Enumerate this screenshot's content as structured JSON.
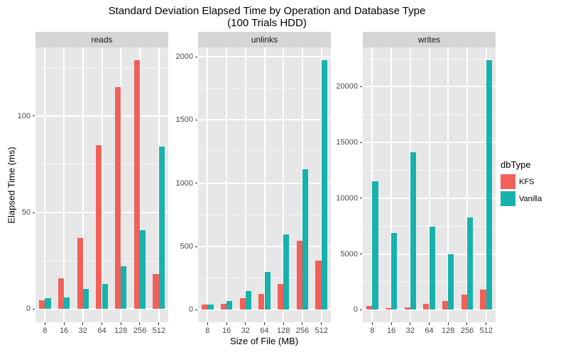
{
  "chart_data": {
    "type": "bar",
    "title": "Standard Deviation Elapsed Time by Operation and Database Type",
    "subtitle": "(100 Trials HDD)",
    "xlabel": "Size of File (MB)",
    "ylabel": "Elapsed Time (ms)",
    "categories": [
      "8",
      "16",
      "32",
      "64",
      "128",
      "256",
      "512"
    ],
    "legend": {
      "title": "dbType",
      "position": "right"
    },
    "series_names": [
      "KFS",
      "Vanilla"
    ],
    "series_colors": [
      "#F1605A",
      "#17B2AC"
    ],
    "panel_bg": "#E7E7E7",
    "strip_bg": "#D5D5D5",
    "grid_color": "#FFFFFF",
    "grid": "white major+minor horizontal, major vertical at category centers",
    "panels": [
      {
        "label": "reads",
        "ylim": [
          -6.8,
          135.5
        ],
        "yticks": [
          0,
          50,
          100
        ],
        "yminor": [
          25,
          75,
          125
        ],
        "series": [
          {
            "name": "KFS",
            "values": [
              4.5,
              16,
              37,
              85,
              115,
              129,
              18
            ]
          },
          {
            "name": "Vanilla",
            "values": [
              5.5,
              6,
              10.5,
              13,
              22,
              41,
              84
            ]
          }
        ]
      },
      {
        "label": "unlinks",
        "ylim": [
          -99,
          2074
        ],
        "yticks": [
          0,
          500,
          1000,
          1500,
          2000
        ],
        "yminor": [
          250,
          750,
          1250,
          1750
        ],
        "series": [
          {
            "name": "KFS",
            "values": [
              40,
              48,
              92,
              127,
              205,
              545,
              390
            ]
          },
          {
            "name": "Vanilla",
            "values": [
              40,
              70,
              150,
              300,
              595,
              1110,
              1975
            ]
          }
        ]
      },
      {
        "label": "writes",
        "ylim": [
          -1120,
          23520
        ],
        "yticks": [
          0,
          5000,
          10000,
          15000,
          20000
        ],
        "yminor": [
          2500,
          7500,
          12500,
          17500,
          22500
        ],
        "series": [
          {
            "name": "KFS",
            "values": [
              360,
              130,
              190,
              510,
              810,
              1370,
              1800
            ]
          },
          {
            "name": "Vanilla",
            "values": [
              11500,
              6850,
              14100,
              7450,
              4950,
              8300,
              22400
            ]
          }
        ]
      }
    ]
  }
}
